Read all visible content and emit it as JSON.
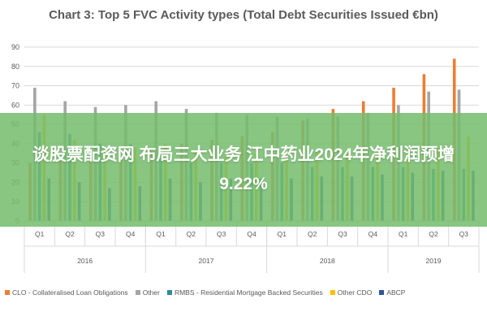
{
  "chart_data": {
    "type": "bar",
    "title": "Chart 3: Top 5 FVC Activity types (Total Debt Securities Issued €bn)",
    "xlabel": "",
    "ylabel": "",
    "ylim": [
      0,
      90
    ],
    "yticks": [
      0,
      10,
      20,
      30,
      40,
      50,
      60,
      70,
      80,
      90
    ],
    "grid": true,
    "legend_position": "bottom",
    "years": [
      {
        "label": "2016",
        "quarters": [
          "Q1",
          "Q2",
          "Q3",
          "Q4"
        ]
      },
      {
        "label": "2017",
        "quarters": [
          "Q1",
          "Q2",
          "Q3",
          "Q4"
        ]
      },
      {
        "label": "2018",
        "quarters": [
          "Q1",
          "Q2",
          "Q3",
          "Q4"
        ]
      },
      {
        "label": "2019",
        "quarters": [
          "Q1",
          "Q2",
          "Q3"
        ]
      }
    ],
    "categories": [
      "Q1",
      "Q2",
      "Q3",
      "Q4",
      "Q1",
      "Q2",
      "Q3",
      "Q4",
      "Q1",
      "Q2",
      "Q3",
      "Q4",
      "Q1",
      "Q2",
      "Q3"
    ],
    "series": [
      {
        "name": "CLO - Collateralised Loan Obligations",
        "color": "#ed7d31",
        "values": [
          30,
          32,
          34,
          33,
          38,
          40,
          42,
          44,
          46,
          52,
          58,
          62,
          69,
          76,
          84
        ]
      },
      {
        "name": "Other",
        "color": "#a5a5a5",
        "values": [
          69,
          62,
          59,
          60,
          62,
          58,
          56,
          55,
          54,
          53,
          54,
          56,
          60,
          67,
          68
        ]
      },
      {
        "name": "RMBS - Residential Mortgage Backed Securities",
        "color": "#2e8b9a",
        "values": [
          46,
          45,
          40,
          40,
          33,
          30,
          30,
          30,
          30,
          28,
          28,
          28,
          28,
          27,
          27
        ]
      },
      {
        "name": "Other CDO",
        "color": "#ffc000",
        "values": [
          55,
          42,
          37,
          38,
          40,
          36,
          33,
          35,
          36,
          36,
          36,
          38,
          37,
          38,
          44
        ]
      },
      {
        "name": "ABCP",
        "color": "#2f5597",
        "values": [
          22,
          20,
          17,
          18,
          22,
          20,
          22,
          22,
          22,
          23,
          23,
          24,
          25,
          26,
          26
        ]
      }
    ]
  },
  "overlay": {
    "headline": "谈股票配资网 布局三大业务 江中药业2024年净利润预增9.22%"
  }
}
